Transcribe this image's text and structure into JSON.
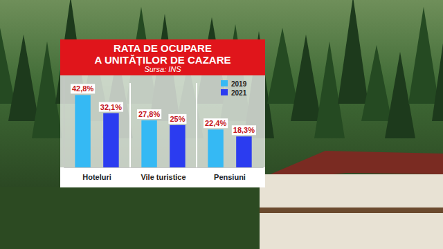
{
  "chart_data": {
    "type": "bar",
    "title": "RATA DE OCUPARE\nA UNITĂȚILOR DE CAZARE",
    "subtitle": "Sursa: INS",
    "categories": [
      "Hoteluri",
      "Vile turistice",
      "Pensiuni"
    ],
    "series": [
      {
        "name": "2019",
        "color": "#35b9f4",
        "values": [
          42.8,
          27.8,
          22.4
        ],
        "value_labels": [
          "42,8%",
          "27,8%",
          "22,4%"
        ]
      },
      {
        "name": "2021",
        "color": "#2b3cf0",
        "values": [
          32.1,
          25,
          18.3
        ],
        "value_labels": [
          "32,1%",
          "25%",
          "18,3%"
        ]
      }
    ],
    "ylim": [
      0,
      54
    ],
    "yticks": [],
    "tick_labels": "x",
    "data_labels": true,
    "legend": "top-right",
    "grid": false
  }
}
